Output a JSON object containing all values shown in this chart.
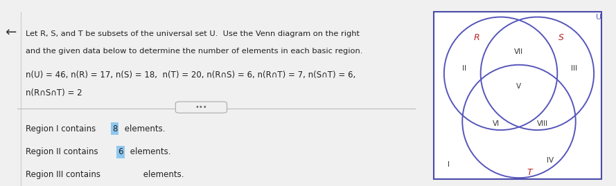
{
  "title_line1": "Let R, S, and T be subsets of the universal set U.  Use the Venn diagram on the right",
  "title_line2": "and the given data below to determine the number of elements in each basic region.",
  "data_line1": "n(U) = 46, n(R) = 17, n(S) = 18,  n(T) = 20, n(R∩S) = 6, n(R∩T) = 7, n(S∩T) = 6,",
  "data_line2": "n(R∩S∩T) = 2",
  "result1_pre": "Region I contains ",
  "result1_val": "8",
  "result1_post": " elements.",
  "result2_pre": "Region II contains ",
  "result2_val": "6",
  "result2_post": " elements.",
  "result3_pre": "Region III contains ",
  "result3_post": " elements.",
  "bg_color": "#f0f0f0",
  "white": "#ffffff",
  "blue_top": "#4a90d9",
  "venn_border": "#4a4aaa",
  "circle_edge": "#5555bb",
  "R_color": "#bb2222",
  "S_color": "#bb2222",
  "T_color": "#bb2222",
  "region_color": "#333333",
  "text_color": "#222222",
  "hl_color": "#8ec8f0",
  "U_color": "#5555bb",
  "circle_r": 0.13,
  "cR": [
    -0.042,
    0.048
  ],
  "cS": [
    0.042,
    0.048
  ],
  "cT": [
    0.0,
    -0.062
  ]
}
